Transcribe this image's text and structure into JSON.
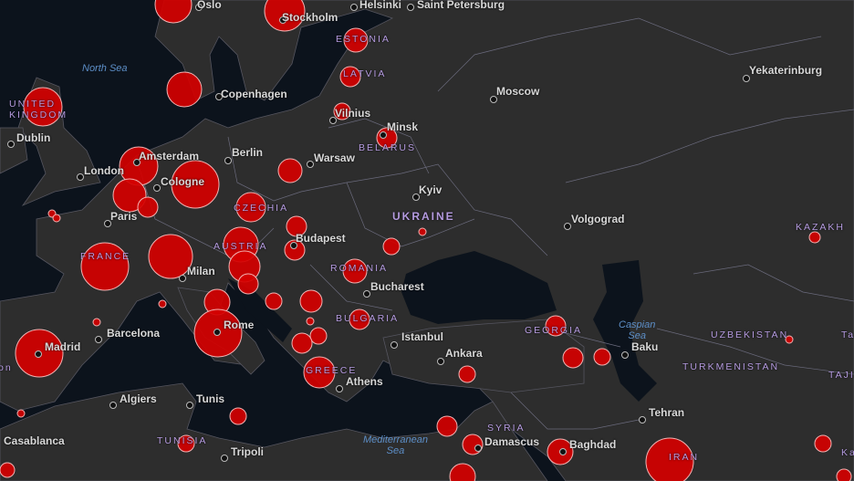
{
  "map": {
    "land_color": "#2d2d2d",
    "sea_color": "#0c131c",
    "marker_color": "#d40000",
    "marker_border": "#f2b3b3",
    "border_color": "#6b6b80",
    "cities": [
      "Oslo",
      "Stockholm",
      "Helsinki",
      "Saint Petersburg",
      "Copenhagen",
      "Moscow",
      "Yekaterinburg",
      "Vilnius",
      "Minsk",
      "Dublin",
      "Amsterdam",
      "Berlin",
      "Warsaw",
      "London",
      "Cologne",
      "Kyiv",
      "Paris",
      "Volgograd",
      "Budapest",
      "Milan",
      "Bucharest",
      "Barcelona",
      "Rome",
      "Istanbul",
      "Ankara",
      "Madrid",
      "Baku",
      "Athens",
      "Algiers",
      "Tunis",
      "Tehran",
      "Casablanca",
      "Damascus",
      "Baghdad",
      "Tripoli"
    ],
    "countries": [
      "ESTONIA",
      "LATVIA",
      "UNITED",
      "KINGDOM",
      "BELARUS",
      "UKRAINE",
      "CZECHIA",
      "AUSTRIA",
      "FRANCE",
      "ROMANIA",
      "BULGARIA",
      "GEORGIA",
      "UZBEKISTAN",
      "TURKMENISTAN",
      "GREECE",
      "SYRIA",
      "TUNISIA",
      "IRAN",
      "KAZAKH",
      "TAJI",
      "Ta",
      "Ka",
      "on"
    ],
    "seas": [
      "North Sea",
      "Caspian\nSea",
      "Mediterranean\nSea"
    ]
  }
}
